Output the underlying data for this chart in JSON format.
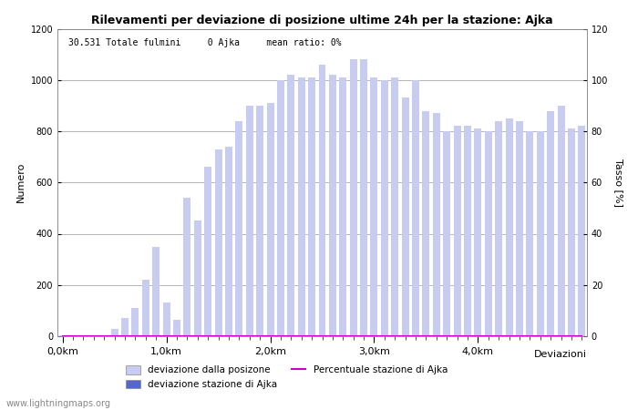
{
  "title": "Rilevamenti per deviazione di posizione ultime 24h per la stazione: Ajka",
  "subtitle": "30.531 Totale fulmini     0 Ajka     mean ratio: 0%",
  "xlabel": "Deviazioni",
  "ylabel_left": "Numero",
  "ylabel_right": "Tasso [%]",
  "bar_color_light": "#c8ccf0",
  "bar_color_dark": "#5566cc",
  "line_color": "#cc00cc",
  "background_color": "#ffffff",
  "grid_color": "#999999",
  "ylim_left": [
    0,
    1200
  ],
  "ylim_right": [
    0,
    120
  ],
  "yticks_left": [
    0,
    200,
    400,
    600,
    800,
    1000,
    1200
  ],
  "yticks_right": [
    0,
    20,
    40,
    60,
    80,
    100,
    120
  ],
  "xtick_labels": [
    "0,0km",
    "1,0km",
    "2,0km",
    "3,0km",
    "4,0km"
  ],
  "xtick_positions": [
    0,
    10,
    20,
    30,
    40
  ],
  "watermark": "www.lightningmaps.org",
  "bar_values": [
    5,
    2,
    2,
    2,
    2,
    30,
    70,
    110,
    220,
    350,
    130,
    65,
    540,
    450,
    660,
    730,
    740,
    840,
    900,
    900,
    910,
    1000,
    1020,
    1010,
    1010,
    1060,
    1020,
    1010,
    1080,
    1080,
    1010,
    1000,
    1010,
    930,
    1000,
    880,
    870,
    800,
    820,
    820,
    810,
    800,
    840,
    850,
    840,
    800,
    800,
    880,
    900,
    810,
    820
  ],
  "station_bar_values": [
    0,
    0,
    0,
    0,
    0,
    0,
    0,
    0,
    0,
    0,
    0,
    0,
    0,
    0,
    0,
    0,
    0,
    0,
    0,
    0,
    0,
    0,
    0,
    0,
    0,
    0,
    0,
    0,
    0,
    0,
    0,
    0,
    0,
    0,
    0,
    0,
    0,
    0,
    0,
    0,
    0,
    0,
    0,
    0,
    0,
    0,
    0,
    0,
    0,
    0,
    0
  ],
  "legend_light_label": "deviazione dalla posizone",
  "legend_dark_label": "deviazione stazione di Ajka",
  "legend_line_label": "Percentuale stazione di Ajka"
}
